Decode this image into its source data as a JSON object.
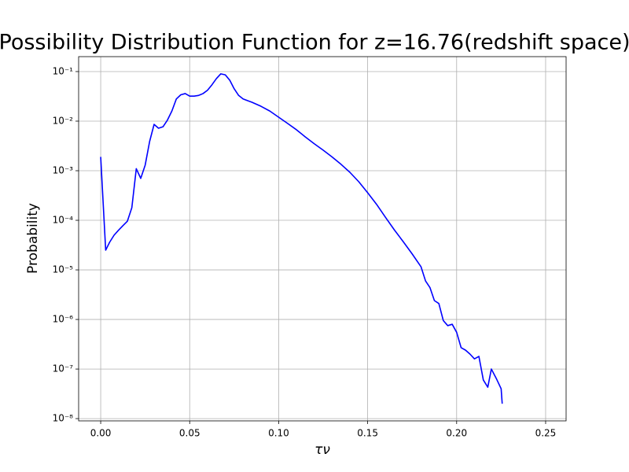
{
  "chart_data": {
    "type": "line",
    "title": "Possibility Distribution Function for z=16.76(redshift space)",
    "xlabel": "τν",
    "ylabel": "Probability",
    "yscale": "log",
    "grid": true,
    "xlim": [
      -0.0124,
      0.2615
    ],
    "ylim": [
      9e-09,
      0.2
    ],
    "xticks": [
      {
        "value": 0,
        "label": "0.00"
      },
      {
        "value": 0.05,
        "label": "0.05"
      },
      {
        "value": 0.1,
        "label": "0.10"
      },
      {
        "value": 0.15,
        "label": "0.15"
      },
      {
        "value": 0.2,
        "label": "0.20"
      },
      {
        "value": 0.25,
        "label": "0.25"
      }
    ],
    "yticks": [
      {
        "value": 1e-08,
        "label": "10⁻⁸"
      },
      {
        "value": 1e-07,
        "label": "10⁻⁷"
      },
      {
        "value": 1e-06,
        "label": "10⁻⁶"
      },
      {
        "value": 1e-05,
        "label": "10⁻⁵"
      },
      {
        "value": 0.0001,
        "label": "10⁻⁴"
      },
      {
        "value": 0.001,
        "label": "10⁻³"
      },
      {
        "value": 0.01,
        "label": "10⁻²"
      },
      {
        "value": 0.1,
        "label": "10⁻¹"
      }
    ],
    "x": [
      0,
      0.0028,
      0.005,
      0.0075,
      0.01,
      0.0125,
      0.015,
      0.0175,
      0.02,
      0.0225,
      0.025,
      0.0275,
      0.03,
      0.0325,
      0.035,
      0.0375,
      0.04,
      0.0425,
      0.045,
      0.0475,
      0.05,
      0.0525,
      0.055,
      0.0575,
      0.06,
      0.0625,
      0.065,
      0.0675,
      0.07,
      0.0725,
      0.075,
      0.0775,
      0.08,
      0.085,
      0.09,
      0.095,
      0.1,
      0.105,
      0.11,
      0.115,
      0.12,
      0.125,
      0.13,
      0.135,
      0.14,
      0.145,
      0.15,
      0.155,
      0.16,
      0.165,
      0.17,
      0.175,
      0.18,
      0.1825,
      0.185,
      0.1875,
      0.19,
      0.1925,
      0.195,
      0.1975,
      0.2,
      0.2025,
      0.205,
      0.2075,
      0.21,
      0.2125,
      0.215,
      0.2175,
      0.2195,
      0.2225,
      0.225,
      0.2256
    ],
    "series": [
      {
        "color": "#0000ff",
        "values": [
          0.0019,
          2.5e-05,
          3.6e-05,
          5e-05,
          6.3e-05,
          7.8e-05,
          9.6e-05,
          0.00018,
          0.0011,
          0.0007,
          0.0013,
          0.0039,
          0.0086,
          0.0072,
          0.0077,
          0.0105,
          0.016,
          0.028,
          0.034,
          0.036,
          0.032,
          0.032,
          0.033,
          0.036,
          0.042,
          0.054,
          0.072,
          0.09,
          0.086,
          0.067,
          0.045,
          0.033,
          0.028,
          0.024,
          0.02,
          0.016,
          0.012,
          0.009,
          0.0067,
          0.0048,
          0.0035,
          0.0026,
          0.0019,
          0.00135,
          0.00093,
          0.0006,
          0.00036,
          0.00021,
          0.000115,
          6.4e-05,
          3.7e-05,
          2.1e-05,
          1.15e-05,
          6e-06,
          4.4e-06,
          2.4e-06,
          2.1e-06,
          9.5e-07,
          7.5e-07,
          8e-07,
          5.5e-07,
          2.7e-07,
          2.4e-07,
          2e-07,
          1.6e-07,
          1.8e-07,
          6e-08,
          4.3e-08,
          1e-07,
          6.2e-08,
          4e-08,
          2e-08
        ]
      }
    ]
  }
}
